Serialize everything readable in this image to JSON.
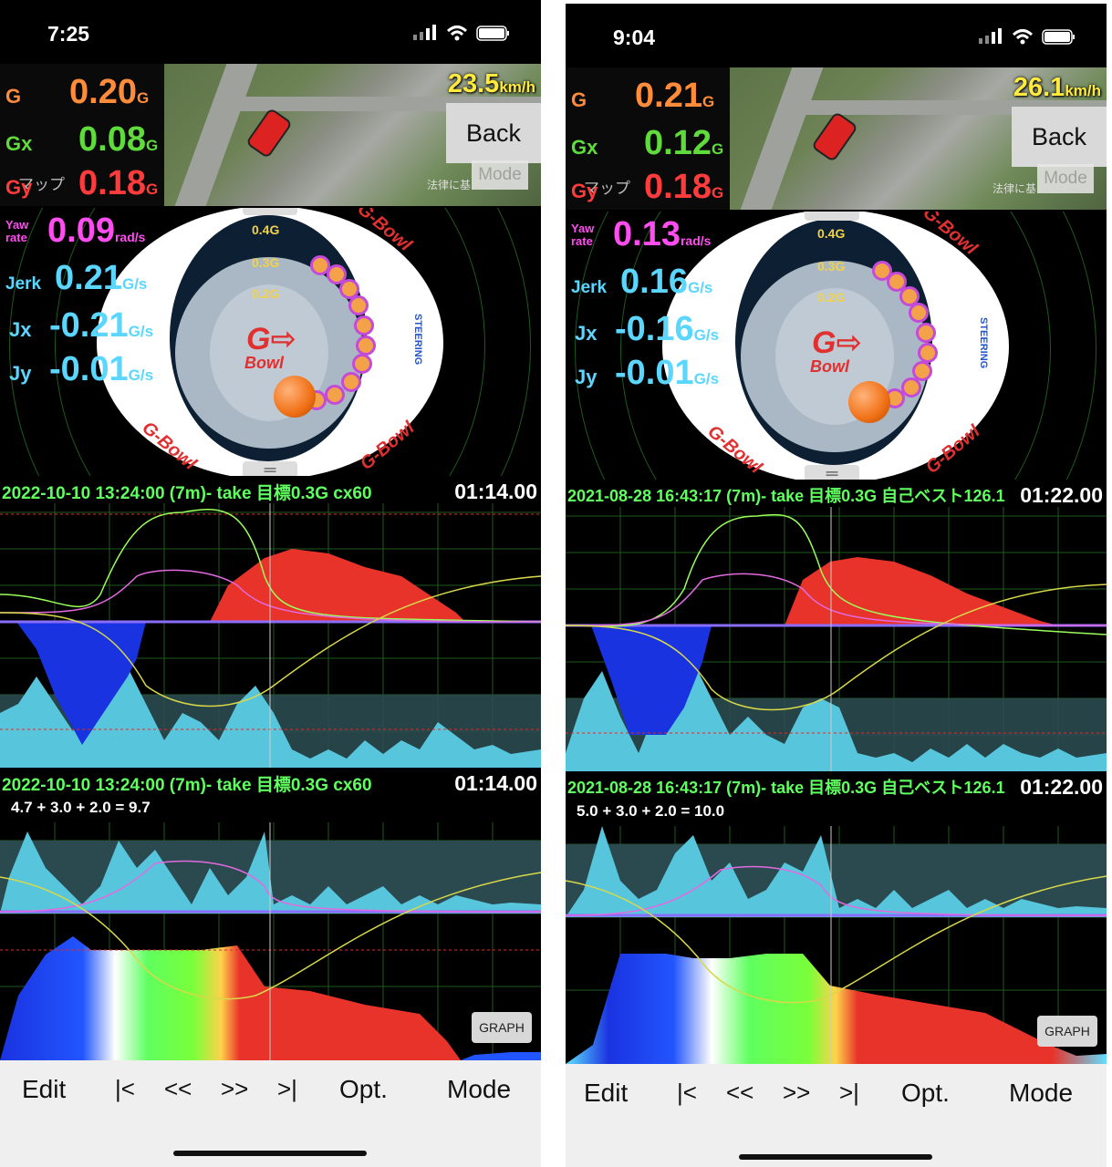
{
  "screens": [
    {
      "status_time": "7:25",
      "speed_value": "23.5",
      "speed_unit": "km/h",
      "back_label": "Back",
      "mode_chip": "Mode",
      "map_note": "法律に基",
      "map_label": "マップ",
      "g_label": "G",
      "g_value": "0.20",
      "g_unit": "G",
      "gx_label": "Gx",
      "gx_value": "0.08",
      "gx_unit": "G",
      "gy_label": "Gy",
      "gy_value": "0.18",
      "gy_unit": "G",
      "yaw_label": "Yaw rate",
      "yaw_value": "0.09",
      "yaw_unit": "rad/s",
      "jerk_label": "Jerk",
      "jerk_value": "0.21",
      "jerk_unit": "G/s",
      "jx_label": "Jx",
      "jx_value": "-0.21",
      "jx_unit": "G/s",
      "jy_label": "Jy",
      "jy_value": "-0.01",
      "jy_unit": "G/s",
      "graph1_header": "2022-10-10 13:24:00 (7m)- take 目標0.3G  cx60",
      "graph1_time": "01:14.00",
      "graph2_header": "2022-10-10 13:24:00 (7m)- take 目標0.3G  cx60",
      "graph2_time": "01:14.00",
      "formula": "4.7 + 3.0 + 2.0 = 9.7",
      "graph_button": "GRAPH"
    },
    {
      "status_time": "9:04",
      "speed_value": "26.1",
      "speed_unit": "km/h",
      "back_label": "Back",
      "mode_chip": "Mode",
      "map_note": "法律に基",
      "map_label": "マップ",
      "g_label": "G",
      "g_value": "0.21",
      "g_unit": "G",
      "gx_label": "Gx",
      "gx_value": "0.12",
      "gx_unit": "G",
      "gy_label": "Gy",
      "gy_value": "0.18",
      "gy_unit": "G",
      "yaw_label": "Yaw rate",
      "yaw_value": "0.13",
      "yaw_unit": "rad/s",
      "jerk_label": "Jerk",
      "jerk_value": "0.16",
      "jerk_unit": "G/s",
      "jx_label": "Jx",
      "jx_value": "-0.16",
      "jx_unit": "G/s",
      "jy_label": "Jy",
      "jy_value": "-0.01",
      "jy_unit": "G/s",
      "graph1_header": "2021-08-28 16:43:17 (7m)- take 目標0.3G 自己ベスト126.1",
      "graph1_time": "01:22.00",
      "graph2_header": "2021-08-28 16:43:17 (7m)- take 目標0.3G 自己ベスト126.1",
      "graph2_time": "01:22.00",
      "formula": "5.0 + 3.0 + 2.0 = 10.0",
      "graph_button": "GRAPH"
    }
  ],
  "bowl": {
    "ring_labels": [
      "0.4G",
      "0.3G",
      "0.2G"
    ],
    "brand": "G-Bowl",
    "center_brand": "Bowl",
    "steering": "STEERING"
  },
  "toolbar": {
    "edit": "Edit",
    "first": "|<",
    "rewind": "<<",
    "forward": ">>",
    "last": ">|",
    "opt": "Opt.",
    "mode": "Mode"
  },
  "colors": {
    "g": "#ff8c3a",
    "gx": "#5fdc3c",
    "gy": "#ff3b3b",
    "yaw": "#ff4df0",
    "jerk": "#5bd6ff",
    "accel_fill": "#e8332a",
    "brake_fill": "#1a33e0",
    "jerk_fill": "#57c6dc"
  }
}
